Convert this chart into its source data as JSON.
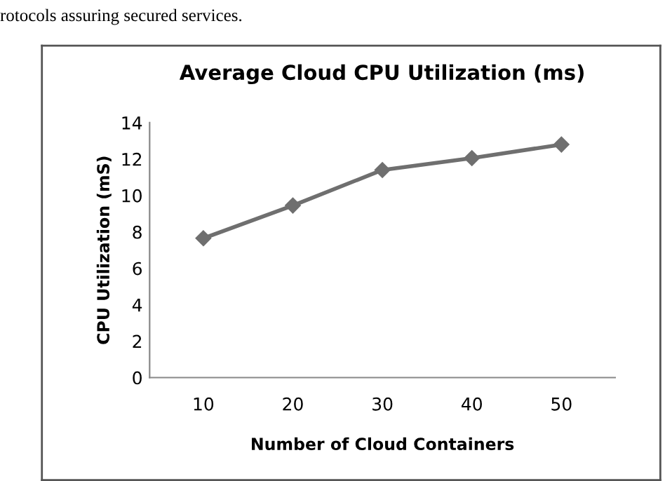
{
  "chart_data": {
    "type": "line",
    "title": "Average Cloud CPU Utilization (ms)",
    "xlabel": "Number of Cloud Containers",
    "ylabel": "CPU Utilization (mS)",
    "categories": [
      "10",
      "20",
      "30",
      "40",
      "50"
    ],
    "series": [
      {
        "color": "#6f6f6f",
        "values": [
          7.65,
          9.45,
          11.4,
          12.05,
          12.8
        ]
      }
    ],
    "ylim": [
      0,
      14
    ],
    "yticks": [
      0,
      2,
      4,
      6,
      8,
      10,
      12,
      14
    ],
    "marker": "diamond",
    "line_style": "solid",
    "grid": false,
    "legend": false,
    "annotations": [
      "rotocols assuring secured services."
    ]
  }
}
